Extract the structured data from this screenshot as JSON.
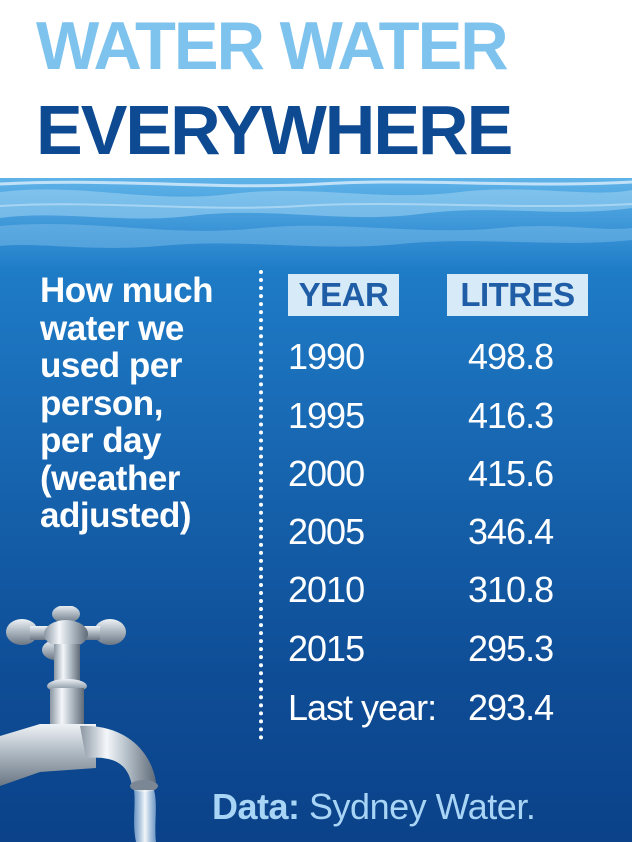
{
  "title": {
    "line1": "WATER WATER",
    "line2": "EVERYWHERE"
  },
  "description": {
    "lines": [
      "How much",
      "water we",
      "used per",
      "person,",
      "per day",
      "(weather",
      "adjusted)"
    ]
  },
  "source": {
    "label": "Data:",
    "name": "Sydney Water."
  },
  "colors": {
    "title_line1": "#7ec3ee",
    "title_line2": "#0d4a92",
    "header_bg": "#d6eaf8",
    "header_text": "#1f5ea6",
    "source_text": "#a8d4f5"
  },
  "icons": [
    "tap-icon",
    "water-surface"
  ],
  "chart_data": {
    "type": "table",
    "columns": [
      "YEAR",
      "LITRES"
    ],
    "rows": [
      {
        "year": "1990",
        "litres": "498.8"
      },
      {
        "year": "1995",
        "litres": "416.3"
      },
      {
        "year": "2000",
        "litres": "415.6"
      },
      {
        "year": "2005",
        "litres": "346.4"
      },
      {
        "year": "2010",
        "litres": "310.8"
      },
      {
        "year": "2015",
        "litres": "295.3"
      },
      {
        "year": "Last year:",
        "litres": "293.4"
      }
    ]
  }
}
